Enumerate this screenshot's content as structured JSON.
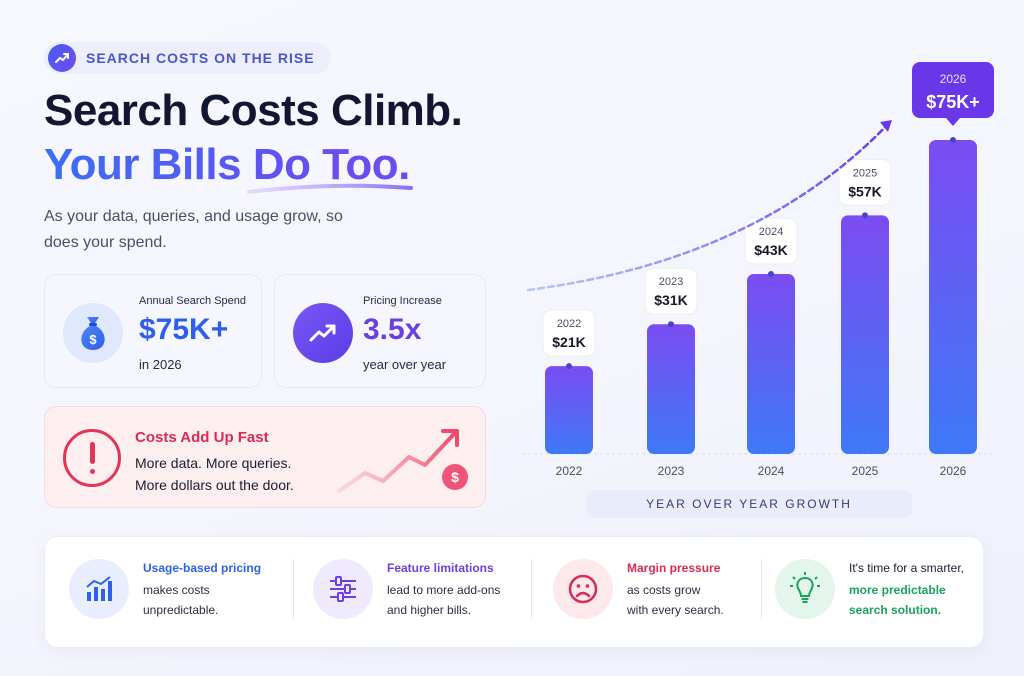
{
  "badge": {
    "text": "SEARCH COSTS ON THE RISE",
    "icon": "trend-up-icon"
  },
  "headline": {
    "line1": "Search Costs Climb.",
    "line2": "Your Bills Do Too."
  },
  "subtitle": "As your data, queries, and usage grow, so does your spend.",
  "stats": [
    {
      "label": "Annual Search Spend",
      "value": "$75K+",
      "sub": "in 2026",
      "icon": "money-bag-icon"
    },
    {
      "label": "Pricing Increase",
      "value": "3.5x",
      "sub": "year over year",
      "icon": "trend-up-icon"
    }
  ],
  "warning": {
    "title": "Costs Add Up Fast",
    "line1": "More data. More queries.",
    "line2": "More dollars out the door.",
    "icon": "alert-icon",
    "coin": "$"
  },
  "chart_data": {
    "type": "bar",
    "categories": [
      "2022",
      "2023",
      "2024",
      "2025",
      "2026"
    ],
    "values": [
      21,
      31,
      43,
      57,
      75
    ],
    "data_labels": [
      "$21K",
      "$31K",
      "$43K",
      "$57K",
      "$75K+"
    ],
    "callout_years": [
      "2022",
      "2023",
      "2024",
      "2025",
      "2026"
    ],
    "xlabel": "YEAR OVER YEAR GROWTH",
    "ylabel": "",
    "ylim": [
      0,
      75
    ],
    "grid": false,
    "colors": {
      "bar_top": "#7b4cf2",
      "bar_bottom": "#3e79f7",
      "highlight": "#6a37e8"
    }
  },
  "features": [
    {
      "title": "Usage-based pricing",
      "line1": "makes costs",
      "line2": "unpredictable.",
      "icon": "bar-chart-icon",
      "color": "#2d62e8"
    },
    {
      "title": "Feature limitations",
      "line1": "lead to more add-ons",
      "line2": "and higher bills.",
      "icon": "sliders-icon",
      "color": "#6b3fe0"
    },
    {
      "title": "Margin pressure",
      "line1": "as costs grow",
      "line2": "with every search.",
      "icon": "sad-face-icon",
      "color": "#d62d55"
    },
    {
      "title": "It's time for a smarter,",
      "line1": "more predictable",
      "line2": "search solution.",
      "icon": "lightbulb-icon",
      "color": "#17a35e"
    }
  ]
}
